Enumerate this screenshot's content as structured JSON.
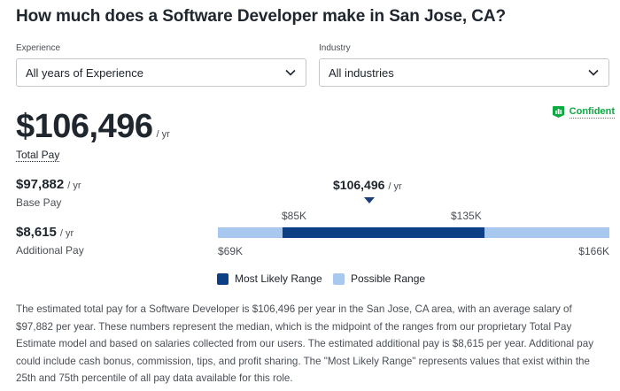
{
  "title": "How much does a Software Developer make in San Jose, CA?",
  "filters": {
    "experience": {
      "label": "Experience",
      "value": "All years of Experience"
    },
    "industry": {
      "label": "Industry",
      "value": "All industries"
    }
  },
  "total_pay": {
    "amount": "$106,496",
    "unit": "/ yr",
    "label": "Total Pay"
  },
  "confidence": {
    "label": "Confident",
    "icon": "bar-chart-badge-icon",
    "color": "#0caa41"
  },
  "base_pay": {
    "amount": "$97,882",
    "unit": "/ yr",
    "label": "Base Pay"
  },
  "additional_pay": {
    "amount": "$8,615",
    "unit": "/ yr",
    "label": "Additional Pay"
  },
  "range_chart": {
    "median": {
      "amount": "$106,496",
      "unit": "/ yr",
      "value": 106496
    },
    "most_likely_low": {
      "label": "$85K",
      "value": 85000
    },
    "most_likely_high": {
      "label": "$135K",
      "value": 135000
    },
    "possible_low": {
      "label": "$69K",
      "value": 69000
    },
    "possible_high": {
      "label": "$166K",
      "value": 166000
    },
    "colors": {
      "most_likely": "#0d3f84",
      "possible": "#a8c8f0",
      "marker": "#1a3e7a"
    }
  },
  "legend": {
    "most_likely": "Most Likely Range",
    "possible": "Possible Range"
  },
  "description": "The estimated total pay for a Software Developer is $106,496 per year in the San Jose, CA area, with an average salary of $97,882 per year. These numbers represent the median, which is the midpoint of the ranges from our proprietary Total Pay Estimate model and based on salaries collected from our users. The estimated additional pay is $8,615 per year. Additional pay could include cash bonus, commission, tips, and profit sharing. The \"Most Likely Range\" represents values that exist within the 25th and 75th percentile of all pay data available for this role."
}
